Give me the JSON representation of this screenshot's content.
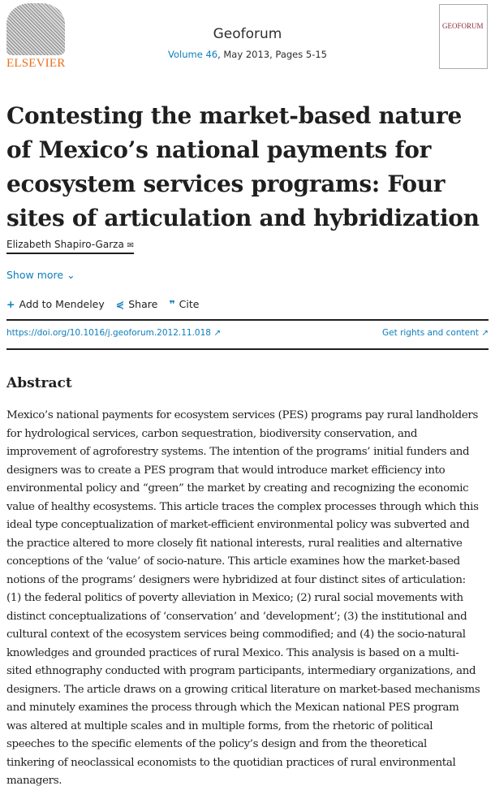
{
  "header": {
    "publisher_logo_text": "ELSEVIER",
    "journal": "Geoforum",
    "volume_link": "Volume 46",
    "issue_info": ", May 2013, Pages 5-15",
    "cover_text": "GEOFORUM"
  },
  "article": {
    "title": "Contesting the market-based nature of Mexico’s national payments for ecosystem services programs: Four sites of articulation and hybridization",
    "author": "Elizabeth Shapiro-Garza",
    "show_more": "Show more",
    "actions": {
      "mendeley": "Add to Mendeley",
      "share": "Share",
      "cite": "Cite"
    },
    "doi": "https://doi.org/10.1016/j.geoforum.2012.11.018",
    "rights": "Get rights and content",
    "abstract_heading": "Abstract",
    "abstract_lines": [
      "Mexico’s national payments for ecosystem services (PES) programs pay rural landholders",
      "for hydrological services, carbon sequestration, biodiversity conservation, and",
      "improvement of agroforestry systems. The intention of the programs’ initial funders and",
      "designers was to create a PES program that would introduce market efficiency into",
      "environmental policy and “green” the market by creating and recognizing the economic",
      "value of healthy ecosystems. This article traces the complex processes through which this",
      "ideal type conceptualization of market-efficient environmental policy was subverted and",
      "the practice altered to more closely fit national interests, rural realities and alternative",
      "conceptions of the ‘value’ of socio-nature. This article examines how the market-based",
      "notions of the programs’ designers were hybridized at four distinct sites of articulation:",
      "(1) the federal politics of poverty alleviation in Mexico; (2) rural social movements with",
      "distinct conceptualizations of ‘conservation’ and ‘development’; (3) the institutional and",
      "cultural context of the ecosystem services being commodified; and (4) the socio-natural",
      "knowledges and grounded practices of rural Mexico. This analysis is based on a multi-",
      "sited ethnography conducted with program participants, intermediary organizations, and",
      "designers. The article draws on a growing critical literature on market-based mechanisms",
      "and minutely examines the process through which the Mexican national PES program",
      "was altered at multiple scales and in multiple forms, from the rhetoric of political",
      "speeches to the specific elements of the policy’s design and from the theoretical",
      "tinkering of neoclassical economists to the quotidian practices of rural environmental",
      "managers."
    ]
  },
  "colors": {
    "link": "#0c7dbb",
    "elsevier_orange": "#e9711c"
  }
}
